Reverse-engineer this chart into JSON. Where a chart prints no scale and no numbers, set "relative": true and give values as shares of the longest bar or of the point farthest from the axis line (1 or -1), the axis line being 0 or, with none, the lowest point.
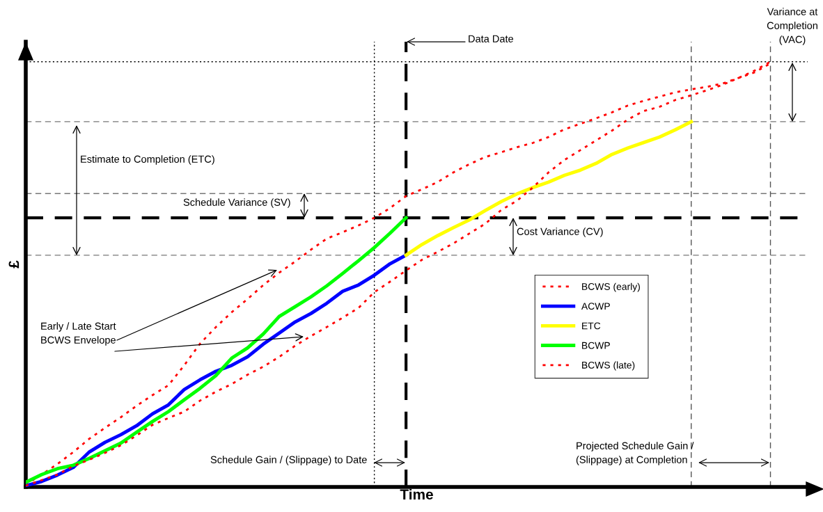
{
  "chart_data": {
    "type": "line",
    "relative": true,
    "xlabel": "Time",
    "ylabel": "£",
    "legend": "right",
    "categories": [
      null,
      null,
      null,
      null,
      null,
      null,
      null,
      null,
      null,
      null,
      null,
      null,
      null,
      null,
      null,
      null,
      null,
      null,
      null,
      null,
      null,
      null,
      null,
      null,
      null,
      null,
      null,
      null,
      null,
      null,
      null,
      null,
      null,
      null,
      null,
      null,
      null,
      null,
      null,
      null,
      null,
      null,
      null,
      null,
      null,
      null,
      null,
      null
    ],
    "series": [
      {
        "name": "BCWS (early)",
        "color": "#ff0000",
        "line_style": "dotted",
        "values": [
          0.005,
          0.029,
          0.054,
          0.082,
          0.113,
          0.139,
          0.164,
          0.191,
          0.216,
          0.239,
          0.286,
          0.337,
          0.376,
          0.411,
          0.442,
          0.475,
          0.504,
          0.53,
          0.558,
          0.584,
          0.599,
          0.615,
          0.633,
          0.656,
          0.684,
          0.7,
          0.717,
          0.74,
          0.759,
          0.776,
          0.787,
          0.799,
          0.809,
          0.823,
          0.841,
          0.854,
          0.867,
          0.881,
          0.897,
          0.908,
          0.918,
          0.928,
          0.935,
          0.941,
          0.949,
          0.962,
          0.975,
          0.996
        ]
      },
      {
        "name": "ACWP",
        "color": "#0000ff",
        "line_style": "solid",
        "values": [
          0.003,
          0.013,
          0.028,
          0.046,
          0.082,
          0.105,
          0.123,
          0.144,
          0.172,
          0.193,
          0.229,
          0.252,
          0.272,
          0.286,
          0.306,
          0.336,
          0.362,
          0.388,
          0.408,
          0.432,
          0.46,
          0.475,
          0.498,
          0.525,
          0.545,
          null,
          null,
          null,
          null,
          null,
          null,
          null,
          null,
          null,
          null,
          null,
          null,
          null,
          null,
          null,
          null,
          null,
          null,
          null,
          null,
          null,
          null,
          null
        ]
      },
      {
        "name": "ETC",
        "color": "#ffff00",
        "line_style": "solid",
        "values": [
          null,
          null,
          null,
          null,
          null,
          null,
          null,
          null,
          null,
          null,
          null,
          null,
          null,
          null,
          null,
          null,
          null,
          null,
          null,
          null,
          null,
          null,
          null,
          null,
          0.545,
          0.57,
          0.591,
          0.61,
          0.628,
          0.65,
          0.671,
          0.689,
          0.704,
          0.717,
          0.733,
          0.745,
          0.761,
          0.782,
          0.797,
          0.81,
          0.823,
          0.84,
          0.859,
          null,
          null,
          null,
          null,
          null
        ]
      },
      {
        "name": "BCWP",
        "color": "#00ff00",
        "line_style": "solid",
        "values": [
          0.011,
          0.029,
          0.043,
          0.051,
          0.067,
          0.085,
          0.103,
          0.129,
          0.154,
          0.177,
          0.205,
          0.232,
          0.262,
          0.303,
          0.327,
          0.36,
          0.401,
          0.424,
          0.447,
          0.473,
          0.502,
          0.532,
          0.563,
          0.597,
          0.633,
          null,
          null,
          null,
          null,
          null,
          null,
          null,
          null,
          null,
          null,
          null,
          null,
          null,
          null,
          null,
          null,
          null,
          null,
          null,
          null,
          null,
          null,
          null
        ]
      },
      {
        "name": "BCWS (late)",
        "color": "#ff0000",
        "line_style": "dotted",
        "values": [
          0.003,
          0.016,
          0.029,
          0.049,
          0.064,
          0.08,
          0.098,
          0.121,
          0.146,
          0.162,
          0.177,
          0.203,
          0.224,
          0.242,
          0.264,
          0.283,
          0.306,
          0.332,
          0.355,
          0.376,
          0.398,
          0.421,
          0.458,
          0.483,
          0.509,
          0.534,
          0.553,
          0.573,
          0.596,
          0.619,
          0.651,
          0.673,
          0.704,
          0.74,
          0.769,
          0.792,
          0.815,
          0.838,
          0.864,
          0.884,
          0.894,
          0.91,
          0.921,
          0.933,
          0.946,
          0.962,
          0.979,
          1
        ]
      }
    ],
    "ref_lines": [
      {
        "axis": "y",
        "value": 1,
        "color": "#000000",
        "line_style": "dotted"
      },
      {
        "axis": "y",
        "value": 0.859,
        "color": "#777777",
        "line_style": "dashed"
      },
      {
        "axis": "y",
        "value": 0.69,
        "color": "#777777",
        "line_style": "dashed"
      },
      {
        "axis": "y",
        "value": 0.633,
        "color": "#000000",
        "line_style": "dashed"
      },
      {
        "axis": "y",
        "value": 0.545,
        "color": "#777777",
        "line_style": "dashed"
      }
    ],
    "annotations": [
      "Data Date",
      "Variance at\nCompletion\n(VAC)",
      "Estimate to Completion (ETC)",
      "Schedule Variance (SV)",
      "Cost Variance (CV)",
      "Early / Late Start\nBCWS Envelope",
      "Schedule Gain / (Slippage) to Date",
      "Projected Schedule Gain /\n(Slippage) at Completion"
    ]
  }
}
